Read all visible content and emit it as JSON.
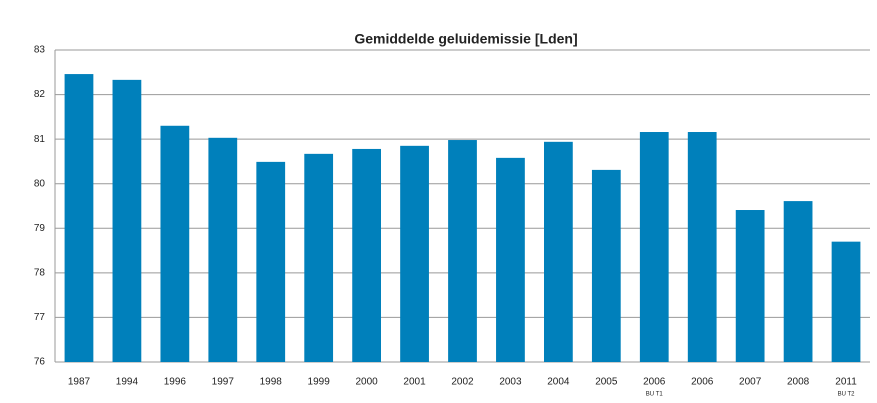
{
  "chart_data": {
    "type": "bar",
    "title": "Gemiddelde geluidemissie  [Lden]",
    "categories": [
      "1987",
      "1994",
      "1996",
      "1997",
      "1998",
      "1999",
      "2000",
      "2001",
      "2002",
      "2003",
      "2004",
      "2005",
      "2006",
      "2006",
      "2007",
      "2008",
      "2011"
    ],
    "category_sublabels": [
      null,
      null,
      null,
      null,
      null,
      null,
      null,
      null,
      null,
      null,
      null,
      null,
      "BU T1",
      null,
      null,
      null,
      "BU T2"
    ],
    "values": [
      82.46,
      82.33,
      81.3,
      81.03,
      80.49,
      80.67,
      80.78,
      80.85,
      80.98,
      80.58,
      80.94,
      80.31,
      81.16,
      81.16,
      79.41,
      79.61,
      78.7
    ],
    "color": "#0080bb",
    "ylim": [
      76,
      83
    ],
    "yticks": [
      76,
      77,
      78,
      79,
      80,
      81,
      82,
      83
    ],
    "grid": true
  }
}
